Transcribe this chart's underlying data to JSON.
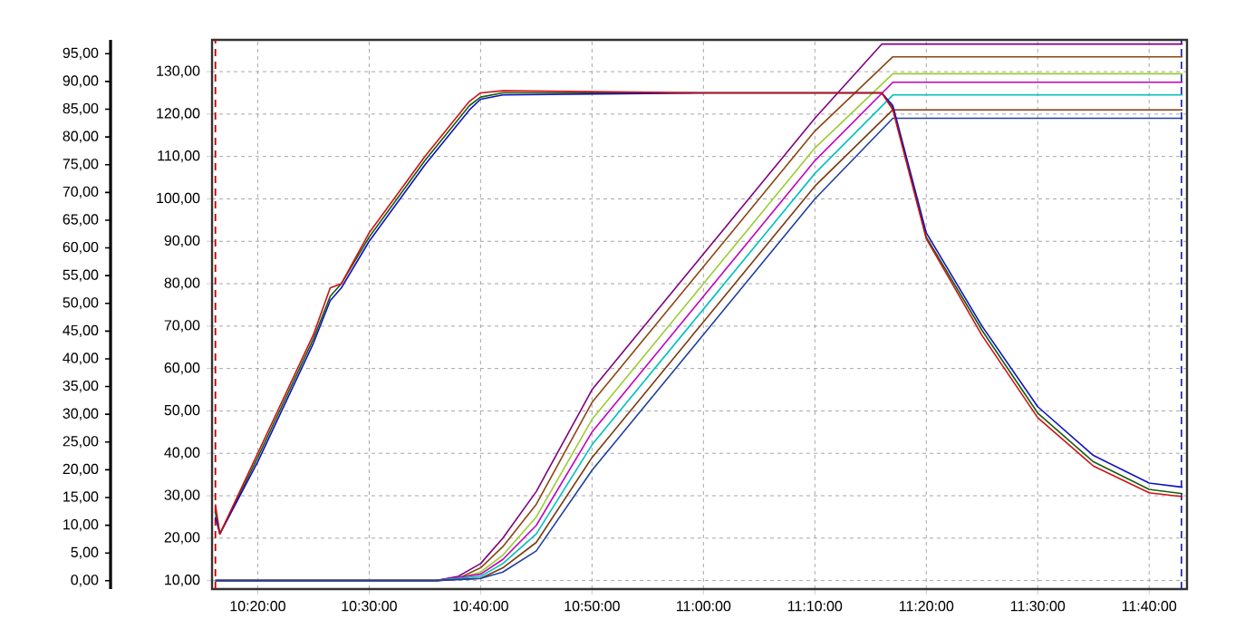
{
  "chart_data": {
    "type": "line",
    "grid": true,
    "xlim": [
      10.265,
      11.7233
    ],
    "xticks": [
      {
        "value": 10.333333,
        "label": "10:20:00"
      },
      {
        "value": 10.5,
        "label": "10:30:00"
      },
      {
        "value": 10.666667,
        "label": "10:40:00"
      },
      {
        "value": 10.833333,
        "label": "10:50:00"
      },
      {
        "value": 11.0,
        "label": "11:00:00"
      },
      {
        "value": 11.166667,
        "label": "11:10:00"
      },
      {
        "value": 11.333333,
        "label": "11:20:00"
      },
      {
        "value": 11.5,
        "label": "11:30:00"
      },
      {
        "value": 11.666667,
        "label": "11:40:00"
      }
    ],
    "ylim": [
      8,
      137.5
    ],
    "yticks": [
      {
        "value": 10,
        "label": "10,00"
      },
      {
        "value": 20,
        "label": "20,00"
      },
      {
        "value": 30,
        "label": "30,00"
      },
      {
        "value": 40,
        "label": "40,00"
      },
      {
        "value": 50,
        "label": "50,00"
      },
      {
        "value": 60,
        "label": "60,00"
      },
      {
        "value": 70,
        "label": "70,00"
      },
      {
        "value": 80,
        "label": "80,00"
      },
      {
        "value": 90,
        "label": "90,00"
      },
      {
        "value": 100,
        "label": "100,00"
      },
      {
        "value": 110,
        "label": "110,00"
      },
      {
        "value": 120,
        "label": "120,00"
      },
      {
        "value": 130,
        "label": "130,00"
      }
    ],
    "y2lim": [
      -1.5,
      97.5
    ],
    "y2ticks": [
      {
        "value": 0,
        "label": "0,00"
      },
      {
        "value": 5,
        "label": "5,00"
      },
      {
        "value": 10,
        "label": "10,00"
      },
      {
        "value": 15,
        "label": "15,00"
      },
      {
        "value": 20,
        "label": "20,00"
      },
      {
        "value": 25,
        "label": "25,00"
      },
      {
        "value": 30,
        "label": "30,00"
      },
      {
        "value": 35,
        "label": "35,00"
      },
      {
        "value": 40,
        "label": "40,00"
      },
      {
        "value": 45,
        "label": "45,00"
      },
      {
        "value": 50,
        "label": "50,00"
      },
      {
        "value": 55,
        "label": "55,00"
      },
      {
        "value": 60,
        "label": "60,00"
      },
      {
        "value": 65,
        "label": "65,00"
      },
      {
        "value": 70,
        "label": "70,00"
      },
      {
        "value": 75,
        "label": "75,00"
      },
      {
        "value": 80,
        "label": "80,00"
      },
      {
        "value": 85,
        "label": "85,00"
      },
      {
        "value": 90,
        "label": "90,00"
      },
      {
        "value": 95,
        "label": "95,00"
      }
    ],
    "ref_lines": [
      {
        "axis": "x",
        "value": 10.27,
        "color": "#c00000",
        "line_style": "dashed"
      },
      {
        "axis": "x",
        "value": 11.715,
        "color": "#2020a0",
        "line_style": "dashed"
      }
    ],
    "series": [
      {
        "color": "#800080",
        "x": [
          10.27,
          10.6,
          10.6333,
          10.6667,
          10.7,
          10.75,
          10.8333,
          11.0,
          11.1667,
          11.2667,
          11.3,
          11.7167
        ],
        "values": [
          10,
          10,
          11,
          14,
          20,
          31,
          55,
          87,
          119,
          136.5,
          136.5,
          136.5
        ]
      },
      {
        "color": "#8b4513",
        "x": [
          10.27,
          10.6,
          10.6333,
          10.6667,
          10.7,
          10.75,
          10.8333,
          11.0,
          11.1667,
          11.2833,
          11.3,
          11.7167
        ],
        "values": [
          10,
          10,
          10.5,
          13,
          18,
          28,
          52,
          84,
          116,
          133.5,
          133.5,
          133.5
        ]
      },
      {
        "color": "#9acd32",
        "x": [
          10.27,
          10.6,
          10.6333,
          10.6667,
          10.7,
          10.75,
          10.8333,
          11.0,
          11.1667,
          11.2833,
          11.3,
          11.7167
        ],
        "values": [
          10,
          10,
          10.5,
          12,
          16,
          25,
          48,
          80,
          112,
          129.5,
          129.5,
          129.5
        ]
      },
      {
        "color": "#c000c0",
        "x": [
          10.27,
          10.6,
          10.6667,
          10.7,
          10.75,
          10.8333,
          11.0,
          11.1667,
          11.2833,
          11.3,
          11.7167
        ],
        "values": [
          10,
          10,
          11.5,
          15,
          23,
          45,
          77,
          109,
          127.5,
          127.5,
          127.5
        ]
      },
      {
        "color": "#00c0c0",
        "x": [
          10.27,
          10.6,
          10.6667,
          10.7,
          10.75,
          10.8333,
          11.0,
          11.1667,
          11.2833,
          11.3,
          11.7167
        ],
        "values": [
          10,
          10,
          11,
          14,
          21,
          42,
          74,
          106,
          124.5,
          124.5,
          124.5
        ]
      },
      {
        "color": "#7a3a10",
        "x": [
          10.27,
          10.6,
          10.6667,
          10.7,
          10.75,
          10.8333,
          11.0,
          11.1667,
          11.2833,
          11.3,
          11.7167
        ],
        "values": [
          10,
          10,
          10.5,
          13,
          19,
          39,
          71,
          103,
          121,
          121,
          121
        ]
      },
      {
        "color": "#2040a0",
        "x": [
          10.27,
          10.6,
          10.6667,
          10.7,
          10.75,
          10.8333,
          11.0,
          11.1667,
          11.2833,
          11.3,
          11.7167
        ],
        "values": [
          10,
          10,
          10.5,
          12,
          17,
          36,
          68,
          100,
          119,
          119,
          119
        ]
      },
      {
        "color": "#106010",
        "x": [
          10.27,
          10.2767,
          10.3333,
          10.4167,
          10.4417,
          10.4583,
          10.5,
          10.5833,
          10.65,
          10.6667,
          10.7,
          11.0,
          11.2667,
          11.2833,
          11.3333,
          11.4167,
          11.5,
          11.5833,
          11.6667,
          11.7167
        ],
        "values": [
          26,
          21,
          39,
          67,
          77,
          80,
          91,
          109,
          122,
          124,
          125,
          125,
          125,
          121.5,
          91,
          69,
          49.5,
          38,
          31.5,
          30.5
        ]
      },
      {
        "color": "#1010c0",
        "x": [
          10.27,
          10.2767,
          10.3333,
          10.4167,
          10.4417,
          10.4583,
          10.5,
          10.5833,
          10.65,
          10.6667,
          10.7,
          11.0,
          11.2667,
          11.2833,
          11.3333,
          11.4167,
          11.5,
          11.5833,
          11.6667,
          11.7167
        ],
        "values": [
          25,
          21,
          38,
          66,
          76,
          79,
          90,
          108,
          121,
          123.5,
          124.5,
          125,
          125,
          122,
          92,
          70,
          51,
          39.5,
          33,
          32
        ]
      },
      {
        "color": "#d01010",
        "x": [
          10.27,
          10.2767,
          10.3333,
          10.4167,
          10.4417,
          10.4583,
          10.5,
          10.5833,
          10.65,
          10.6667,
          10.7,
          11.0,
          11.2667,
          11.2833,
          11.3333,
          11.4167,
          11.5,
          11.5833,
          11.6667,
          11.7167
        ],
        "values": [
          28,
          21,
          40,
          68,
          79,
          80,
          92,
          110,
          123,
          125,
          125.5,
          125,
          125,
          121,
          90.6,
          67.8,
          48.4,
          37,
          30.7,
          29.8
        ]
      }
    ]
  }
}
